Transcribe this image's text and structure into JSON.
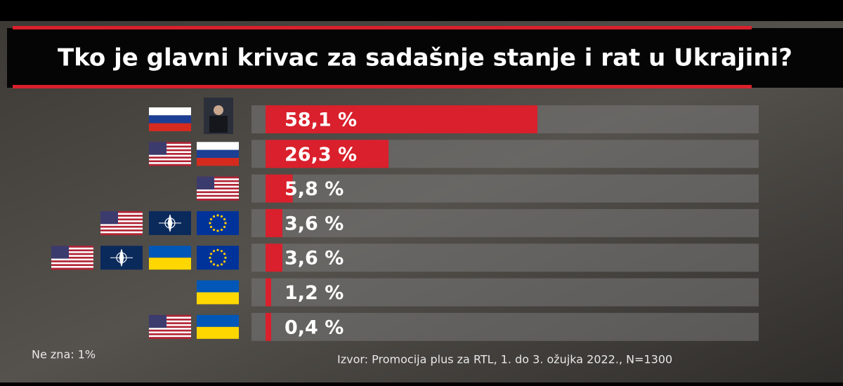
{
  "chart_data": {
    "type": "bar",
    "title": "Tko je glavni krivac za sadašnje stanje i rat u Ukrajini?",
    "values": [
      58.1,
      26.3,
      5.8,
      3.6,
      3.6,
      1.2,
      0.4
    ],
    "value_labels": [
      "58,1 %",
      "26,3 %",
      "5,8 %",
      "3,6 %",
      "3,6 %",
      "1,2 %",
      "0,4 %"
    ],
    "color": "#d9202c",
    "note": "Ne zna: 1%",
    "source": "Izvor: Promocija plus za RTL, 1. do 3. ožujka 2022., N=1300"
  }
}
